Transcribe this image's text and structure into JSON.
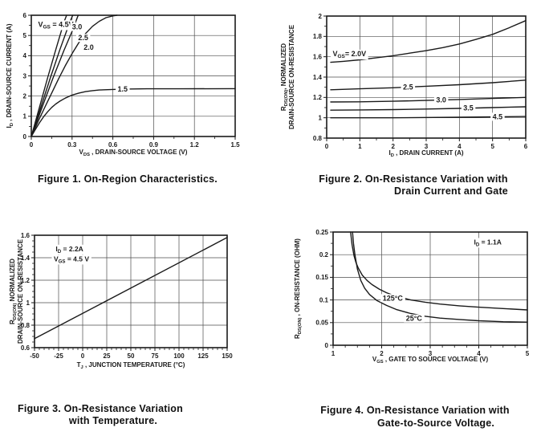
{
  "colors": {
    "ink": "#1a1a1a",
    "grid": "#4d4d4d",
    "background": "#ffffff"
  },
  "chart_data": [
    {
      "id": "fig1",
      "type": "line",
      "caption": [
        "Figure 1. On-Region Characteristics."
      ],
      "xlabel": [
        {
          "t": "V"
        },
        {
          "s": "DS"
        },
        {
          "t": " , DRAIN-SOURCE VOLTAGE (V)"
        }
      ],
      "ylabel": [
        [
          {
            "t": "I"
          },
          {
            "s": "D"
          },
          {
            "t": " , DRAIN-SOURCE CURRENT (A)"
          }
        ]
      ],
      "xlim": [
        0,
        1.5
      ],
      "ylim": [
        0,
        6
      ],
      "xticks": {
        "values": [
          0,
          0.3,
          0.6,
          0.9,
          1.2,
          1.5
        ],
        "labels": [
          "0",
          "0.3",
          "0.6",
          "0.9",
          "1.2",
          "1.5"
        ]
      },
      "yticks": {
        "values": [
          0,
          1,
          2,
          3,
          4,
          5,
          6
        ],
        "labels": [
          "0",
          "1",
          "2",
          "3",
          "4",
          "5",
          "6"
        ]
      },
      "x_minor": 0.15,
      "y_minor": 0.5,
      "grid": true,
      "series": [
        {
          "name": "VGS=4.5V",
          "points": [
            [
              0,
              0
            ],
            [
              0.06,
              1.45
            ],
            [
              0.12,
              2.9
            ],
            [
              0.18,
              4.3
            ],
            [
              0.24,
              5.65
            ],
            [
              0.26,
              6
            ]
          ]
        },
        {
          "name": "VGS=3.0V",
          "points": [
            [
              0,
              0
            ],
            [
              0.07,
              1.45
            ],
            [
              0.14,
              2.9
            ],
            [
              0.21,
              4.3
            ],
            [
              0.28,
              5.6
            ],
            [
              0.305,
              6
            ]
          ]
        },
        {
          "name": "VGS=2.5V",
          "points": [
            [
              0,
              0
            ],
            [
              0.08,
              1.45
            ],
            [
              0.16,
              2.9
            ],
            [
              0.24,
              4.25
            ],
            [
              0.3,
              5.2
            ],
            [
              0.345,
              6
            ]
          ]
        },
        {
          "name": "VGS=2.0V",
          "points": [
            [
              0,
              0
            ],
            [
              0.05,
              0.75
            ],
            [
              0.1,
              1.45
            ],
            [
              0.15,
              2.15
            ],
            [
              0.2,
              2.85
            ],
            [
              0.25,
              3.5
            ],
            [
              0.3,
              4.1
            ],
            [
              0.35,
              4.65
            ],
            [
              0.4,
              5.1
            ],
            [
              0.45,
              5.45
            ],
            [
              0.5,
              5.7
            ],
            [
              0.55,
              5.88
            ],
            [
              0.6,
              5.97
            ],
            [
              0.63,
              6
            ]
          ]
        },
        {
          "name": "VGS=1.5V",
          "points": [
            [
              0,
              0
            ],
            [
              0.03,
              0.35
            ],
            [
              0.06,
              0.68
            ],
            [
              0.09,
              0.97
            ],
            [
              0.12,
              1.22
            ],
            [
              0.15,
              1.44
            ],
            [
              0.18,
              1.61
            ],
            [
              0.21,
              1.75
            ],
            [
              0.25,
              1.9
            ],
            [
              0.3,
              2.05
            ],
            [
              0.35,
              2.15
            ],
            [
              0.4,
              2.22
            ],
            [
              0.45,
              2.27
            ],
            [
              0.5,
              2.3
            ],
            [
              0.6,
              2.33
            ],
            [
              0.7,
              2.35
            ],
            [
              0.85,
              2.36
            ],
            [
              1.1,
              2.36
            ],
            [
              1.5,
              2.37
            ]
          ]
        }
      ],
      "labels": [
        {
          "text": [
            {
              "t": "V"
            },
            {
              "s": "GS"
            },
            {
              "t": " = 4.5V"
            }
          ],
          "x": 0.05,
          "y": 5.55,
          "size": 9
        },
        {
          "text": [
            {
              "t": "3.0"
            }
          ],
          "x": 0.3,
          "y": 5.42,
          "size": 9
        },
        {
          "text": [
            {
              "t": "2.5"
            }
          ],
          "x": 0.345,
          "y": 4.88,
          "size": 9
        },
        {
          "text": [
            {
              "t": "2.0"
            }
          ],
          "x": 0.385,
          "y": 4.42,
          "size": 9
        },
        {
          "text": [
            {
              "t": "1.5"
            }
          ],
          "x": 0.635,
          "y": 2.35,
          "size": 9
        }
      ]
    },
    {
      "id": "fig2",
      "type": "line",
      "caption": [
        "Figure 2. On-Resistance Variation with",
        "Drain Current and Gate"
      ],
      "xlabel": [
        {
          "t": "I"
        },
        {
          "s": "D"
        },
        {
          "t": " , DRAIN CURRENT (A)"
        }
      ],
      "ylabel": [
        [
          {
            "t": "R"
          },
          {
            "s": "DS(ON)"
          },
          {
            "t": ", NORMALIZED"
          }
        ],
        [
          {
            "t": "DRAIN-SOURCE ON-RESISTANCE"
          }
        ]
      ],
      "xlim": [
        0,
        6
      ],
      "ylim": [
        0.8,
        2
      ],
      "xticks": {
        "values": [
          0,
          1,
          2,
          3,
          4,
          5,
          6
        ],
        "labels": [
          "0",
          "1",
          "2",
          "3",
          "4",
          "5",
          "6"
        ]
      },
      "yticks": {
        "values": [
          0.8,
          1,
          1.2,
          1.4,
          1.6,
          1.8,
          2
        ],
        "labels": [
          "0.8",
          "1",
          "1.2",
          "1.4",
          "1.6",
          "1.8",
          "2"
        ]
      },
      "x_minor": 0.5,
      "y_minor": 0.1,
      "grid": true,
      "series": [
        {
          "name": "VGS=2.0V",
          "points": [
            [
              0.12,
              1.545
            ],
            [
              0.5,
              1.555
            ],
            [
              1,
              1.57
            ],
            [
              1.5,
              1.59
            ],
            [
              2,
              1.61
            ],
            [
              2.5,
              1.635
            ],
            [
              3,
              1.66
            ],
            [
              3.5,
              1.69
            ],
            [
              4,
              1.725
            ],
            [
              4.5,
              1.77
            ],
            [
              5,
              1.82
            ],
            [
              5.5,
              1.885
            ],
            [
              6,
              1.955
            ]
          ]
        },
        {
          "name": "VGS=2.5V",
          "points": [
            [
              0.12,
              1.275
            ],
            [
              1,
              1.285
            ],
            [
              2,
              1.295
            ],
            [
              3,
              1.31
            ],
            [
              4,
              1.325
            ],
            [
              5,
              1.345
            ],
            [
              6,
              1.37
            ]
          ]
        },
        {
          "name": "VGS=3.0V",
          "points": [
            [
              0.12,
              1.155
            ],
            [
              1,
              1.157
            ],
            [
              2,
              1.162
            ],
            [
              3,
              1.17
            ],
            [
              4,
              1.18
            ],
            [
              5,
              1.19
            ],
            [
              6,
              1.2
            ]
          ]
        },
        {
          "name": "VGS=3.5V",
          "points": [
            [
              0.12,
              1.075
            ],
            [
              1,
              1.077
            ],
            [
              2,
              1.08
            ],
            [
              3,
              1.086
            ],
            [
              4,
              1.092
            ],
            [
              5,
              1.1
            ],
            [
              6,
              1.108
            ]
          ]
        },
        {
          "name": "VGS=4.5V",
          "points": [
            [
              0.12,
              1.0
            ],
            [
              2,
              1.0
            ],
            [
              4,
              1.005
            ],
            [
              6,
              1.012
            ]
          ]
        }
      ],
      "labels": [
        {
          "text": [
            {
              "t": "V"
            },
            {
              "s": "GS"
            },
            {
              "t": "= 2.0V"
            }
          ],
          "x": 0.18,
          "y": 1.63,
          "size": 9
        },
        {
          "text": [
            {
              "t": "2.5"
            }
          ],
          "x": 2.3,
          "y": 1.3,
          "size": 9
        },
        {
          "text": [
            {
              "t": "3.0"
            }
          ],
          "x": 3.3,
          "y": 1.175,
          "size": 9
        },
        {
          "text": [
            {
              "t": "3.5"
            }
          ],
          "x": 4.12,
          "y": 1.095,
          "size": 9
        },
        {
          "text": [
            {
              "t": "4.5"
            }
          ],
          "x": 5.0,
          "y": 1.01,
          "size": 9
        }
      ]
    },
    {
      "id": "fig3",
      "type": "line",
      "caption": [
        "Figure 3. On-Resistance Variation",
        "with Temperature."
      ],
      "xlabel": [
        {
          "t": "T"
        },
        {
          "s": "J"
        },
        {
          "t": " , JUNCTION TEMPERATURE (°C)"
        }
      ],
      "ylabel": [
        [
          {
            "t": "R"
          },
          {
            "s": "DS(ON)"
          },
          {
            "t": "  NORMALIZED"
          }
        ],
        [
          {
            "t": "DRAIN-SOURCE ON-RESISTANCE"
          }
        ]
      ],
      "xlim": [
        -50,
        150
      ],
      "ylim": [
        0.6,
        1.6
      ],
      "xticks": {
        "values": [
          -50,
          -25,
          0,
          25,
          50,
          75,
          100,
          125,
          150
        ],
        "labels": [
          "-50",
          "-25",
          "0",
          "25",
          "50",
          "75",
          "100",
          "125",
          "150"
        ]
      },
      "yticks": {
        "values": [
          0.6,
          0.8,
          1,
          1.2,
          1.4,
          1.6
        ],
        "labels": [
          "0.6",
          "0.8",
          "1",
          "1.2",
          "1.4",
          "1.6"
        ]
      },
      "x_minor": 5,
      "y_minor": 0.05,
      "grid": true,
      "series": [
        {
          "name": "RDS(on) vs Tj",
          "points": [
            [
              -50,
              0.68
            ],
            [
              150,
              1.58
            ]
          ]
        }
      ],
      "labels": [
        {
          "text": [
            {
              "t": "I"
            },
            {
              "s": "D"
            },
            {
              "t": " = 2.2A"
            }
          ],
          "x": -28,
          "y": 1.48,
          "size": 8.5
        },
        {
          "text": [
            {
              "t": "V"
            },
            {
              "s": "GS"
            },
            {
              "t": " = 4.5 V"
            }
          ],
          "x": -30,
          "y": 1.39,
          "size": 8.5
        }
      ]
    },
    {
      "id": "fig4",
      "type": "line",
      "caption": [
        "Figure 4. On-Resistance Variation with",
        "Gate-to-Source Voltage."
      ],
      "xlabel": [
        {
          "t": "V"
        },
        {
          "s": "GS"
        },
        {
          "t": " , GATE TO SOURCE VOLTAGE (V)"
        }
      ],
      "ylabel": [
        [
          {
            "t": "R"
          },
          {
            "s": "DS(ON)"
          },
          {
            "t": " , ON-RESISTANCE (OHM)"
          }
        ]
      ],
      "xlim": [
        1,
        5
      ],
      "ylim": [
        0,
        0.25
      ],
      "xticks": {
        "values": [
          1,
          2,
          3,
          4,
          5
        ],
        "labels": [
          "1",
          "2",
          "3",
          "4",
          "5"
        ]
      },
      "yticks": {
        "values": [
          0,
          0.05,
          0.1,
          0.15,
          0.2,
          0.25
        ],
        "labels": [
          "0",
          "0.05",
          "0.1",
          "0.15",
          "0.2",
          "0.25"
        ]
      },
      "x_minor": 0.25,
      "y_minor": 0.025,
      "grid": true,
      "series": [
        {
          "name": "125C",
          "points": [
            [
              1.36,
              0.25
            ],
            [
              1.39,
              0.222
            ],
            [
              1.43,
              0.198
            ],
            [
              1.47,
              0.183
            ],
            [
              1.52,
              0.17
            ],
            [
              1.6,
              0.155
            ],
            [
              1.7,
              0.143
            ],
            [
              1.8,
              0.134
            ],
            [
              1.95,
              0.124
            ],
            [
              2.1,
              0.116
            ],
            [
              2.3,
              0.108
            ],
            [
              2.6,
              0.1
            ],
            [
              2.9,
              0.095
            ],
            [
              3.2,
              0.091
            ],
            [
              3.6,
              0.087
            ],
            [
              4,
              0.084
            ],
            [
              4.5,
              0.081
            ],
            [
              5,
              0.078
            ]
          ]
        },
        {
          "name": "25C",
          "points": [
            [
              1.4,
              0.25
            ],
            [
              1.42,
              0.225
            ],
            [
              1.45,
              0.2
            ],
            [
              1.5,
              0.168
            ],
            [
              1.57,
              0.143
            ],
            [
              1.65,
              0.126
            ],
            [
              1.75,
              0.112
            ],
            [
              1.9,
              0.099
            ],
            [
              2.1,
              0.088
            ],
            [
              2.3,
              0.079
            ],
            [
              2.6,
              0.07
            ],
            [
              2.9,
              0.064
            ],
            [
              3.2,
              0.06
            ],
            [
              3.6,
              0.057
            ],
            [
              4,
              0.054
            ],
            [
              4.5,
              0.052
            ],
            [
              5,
              0.051
            ]
          ]
        }
      ],
      "labels": [
        {
          "text": [
            {
              "t": "125°C"
            }
          ],
          "x": 2.02,
          "y": 0.104,
          "size": 9
        },
        {
          "text": [
            {
              "t": "25°C"
            }
          ],
          "x": 2.5,
          "y": 0.059,
          "size": 9
        },
        {
          "text": [
            {
              "t": "I"
            },
            {
              "s": "D"
            },
            {
              "t": " = 1.1A"
            }
          ],
          "x": 3.9,
          "y": 0.228,
          "size": 8.5
        }
      ]
    }
  ]
}
